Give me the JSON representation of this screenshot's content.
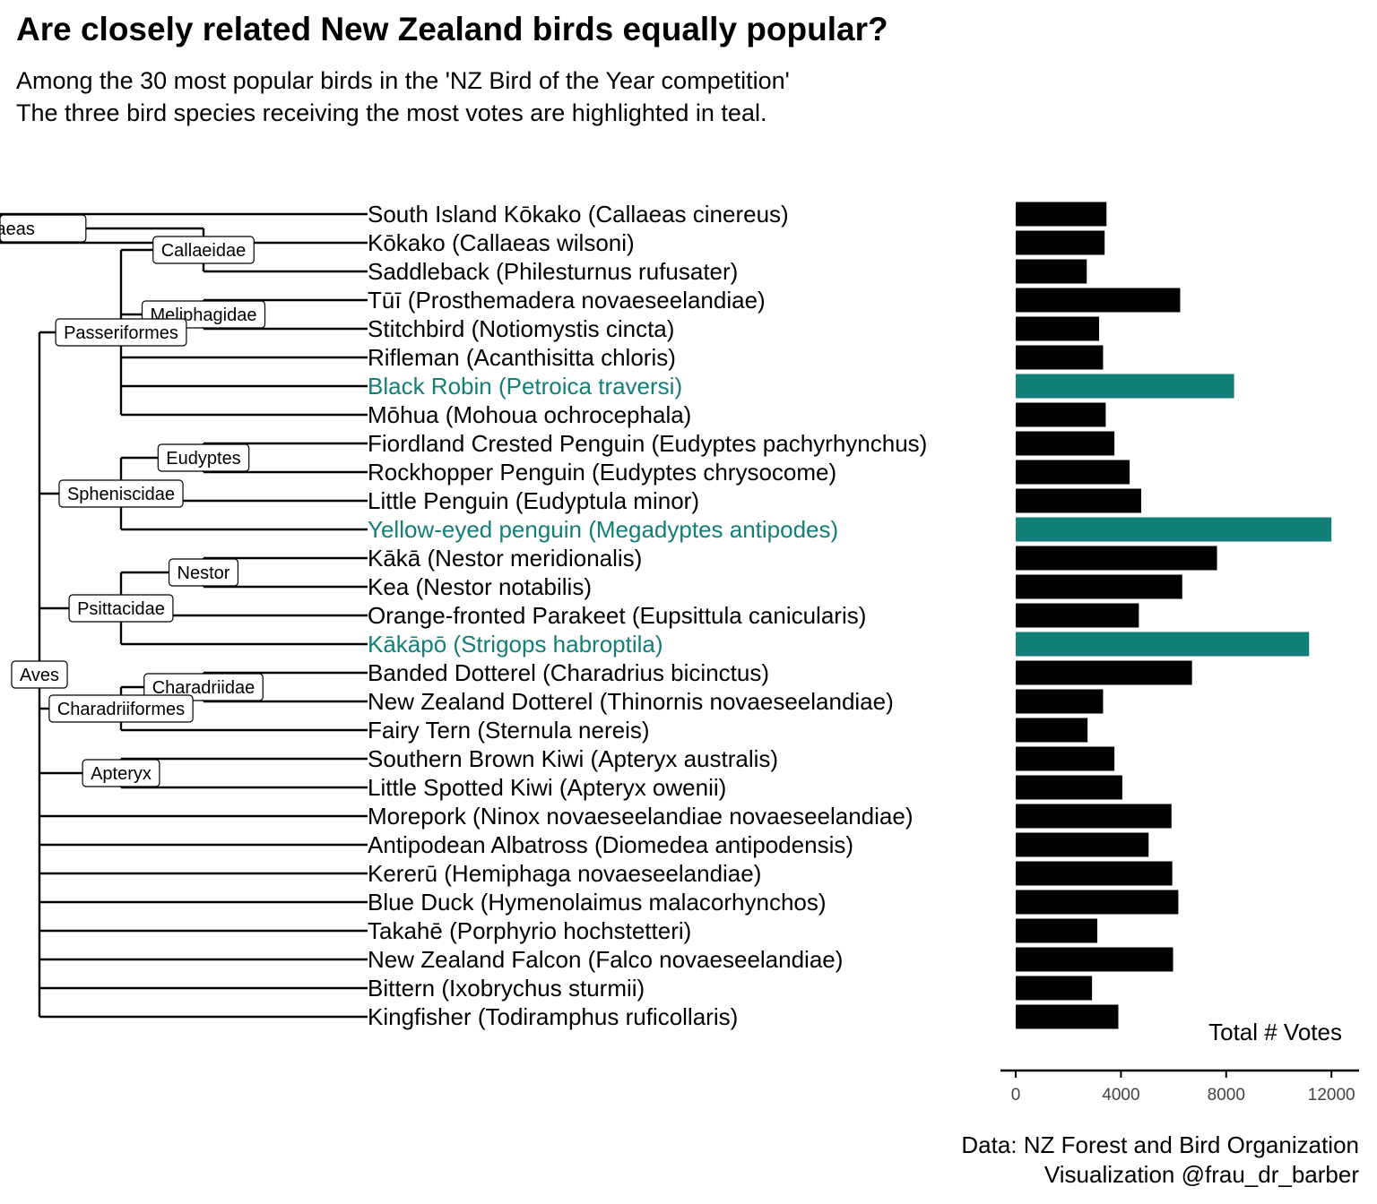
{
  "title": "Are closely related New Zealand birds equally popular?",
  "subtitle": [
    "Among the 30 most popular birds in the 'NZ Bird of the Year competition'",
    "The three bird species receiving the most votes are highlighted in teal."
  ],
  "caption": [
    "Data: NZ Forest and Bird Organization",
    "Visualization @frau_dr_barber"
  ],
  "colors": {
    "highlight": "#127E78",
    "default": "#000000",
    "tree": "#000000"
  },
  "chart_data": {
    "type": "bar",
    "orientation": "horizontal",
    "xlabel": "Total # Votes",
    "xlim": [
      0,
      13000
    ],
    "xticks": [
      0,
      4000,
      8000,
      12000
    ],
    "grid": false,
    "categories": [
      "South Island Kōkako (Callaeas cinereus)",
      "Kōkako (Callaeas wilsoni)",
      "Saddleback (Philesturnus rufusater)",
      "Tūī (Prosthemadera novaeseelandiae)",
      "Stitchbird (Notiomystis cincta)",
      "Rifleman (Acanthisitta chloris)",
      "Black Robin (Petroica traversi)",
      "Mōhua (Mohoua ochrocephala)",
      "Fiordland Crested Penguin (Eudyptes pachyrhynchus)",
      "Rockhopper Penguin (Eudyptes chrysocome)",
      "Little Penguin (Eudyptula minor)",
      "Yellow-eyed penguin (Megadyptes antipodes)",
      "Kākā (Nestor meridionalis)",
      "Kea (Nestor notabilis)",
      "Orange-fronted Parakeet (Eupsittula canicularis)",
      "Kākāpō (Strigops habroptila)",
      "Banded Dotterel (Charadrius bicinctus)",
      "New Zealand Dotterel (Thinornis novaeseelandiae)",
      "Fairy Tern (Sternula nereis)",
      "Southern Brown Kiwi (Apteryx australis)",
      "Little Spotted Kiwi (Apteryx owenii)",
      "Morepork (Ninox novaeseelandiae novaeseelandiae)",
      "Antipodean Albatross (Diomedea antipodensis)",
      "Kererū (Hemiphaga novaeseelandiae)",
      "Blue Duck (Hymenolaimus malacorhynchos)",
      "Takahē (Porphyrio hochstetteri)",
      "New Zealand Falcon (Falco novaeseelandiae)",
      "Bittern (Ixobrychus sturmii)",
      "Kingfisher (Todiramphus ruficollaris)"
    ],
    "values": [
      3450,
      3380,
      2700,
      6250,
      3170,
      3320,
      8300,
      3420,
      3750,
      4330,
      4770,
      12000,
      7650,
      6330,
      4680,
      11150,
      6700,
      3320,
      2730,
      3750,
      4050,
      5920,
      5050,
      5950,
      6180,
      3100,
      5980,
      2900,
      3900
    ],
    "highlighted": [
      "Black Robin (Petroica traversi)",
      "Yellow-eyed penguin (Megadyptes antipodes)",
      "Kākāpō (Strigops habroptila)"
    ],
    "tree": {
      "label": "Aves",
      "children": [
        {
          "label": "Passeriformes",
          "children": [
            {
              "label": "Callaeidae",
              "children": [
                {
                  "label": "Callaeas",
                  "children": [
                    {
                      "leaf": 0
                    },
                    {
                      "leaf": 1
                    }
                  ]
                },
                {
                  "leaf": 2
                }
              ]
            },
            {
              "label": "Meliphagidae",
              "children": [
                {
                  "leaf": 3
                },
                {
                  "leaf": 4
                }
              ]
            },
            {
              "leaf": 5
            },
            {
              "leaf": 6
            },
            {
              "leaf": 7
            }
          ]
        },
        {
          "label": "Spheniscidae",
          "children": [
            {
              "label": "Eudyptes",
              "children": [
                {
                  "leaf": 8
                },
                {
                  "leaf": 9
                }
              ]
            },
            {
              "leaf": 10
            },
            {
              "leaf": 11
            }
          ]
        },
        {
          "label": "Psittacidae",
          "children": [
            {
              "label": "Nestor",
              "children": [
                {
                  "leaf": 12
                },
                {
                  "leaf": 13
                }
              ]
            },
            {
              "leaf": 14
            },
            {
              "leaf": 15
            }
          ]
        },
        {
          "label": "Charadriiformes",
          "children": [
            {
              "label": "Charadriidae",
              "children": [
                {
                  "leaf": 16
                },
                {
                  "leaf": 17
                }
              ]
            },
            {
              "leaf": 18
            }
          ]
        },
        {
          "label": "Apteryx",
          "children": [
            {
              "leaf": 19
            },
            {
              "leaf": 20
            }
          ]
        },
        {
          "leaf": 21
        },
        {
          "leaf": 22
        },
        {
          "leaf": 23
        },
        {
          "leaf": 24
        },
        {
          "leaf": 25
        },
        {
          "leaf": 26
        },
        {
          "leaf": 27
        },
        {
          "leaf": 28
        }
      ]
    }
  }
}
